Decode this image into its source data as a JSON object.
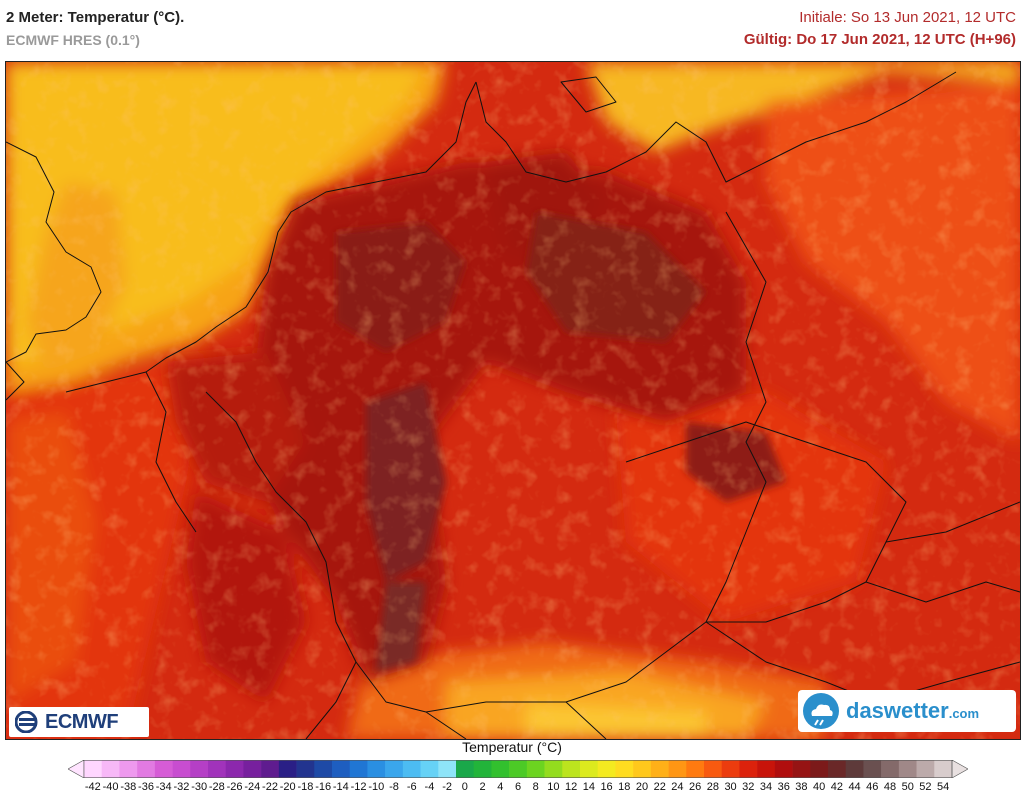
{
  "header": {
    "title": "2 Meter: Temperatur (°C).",
    "model": "ECMWF HRES (0.1°)",
    "initial": "Initiale: So 13 Jun 2021, 12 UTC",
    "valid": "Gültig: Do 17 Jun 2021, 12 UTC (H+96)"
  },
  "logos": {
    "ecmwf": "ECMWF",
    "daswetter_main": "daswetter",
    "daswetter_tld": ".com"
  },
  "legend": {
    "title": "Temperatur (°C)",
    "ticks": [
      "-42",
      "-40",
      "-38",
      "-36",
      "-34",
      "-32",
      "-30",
      "-28",
      "-26",
      "-24",
      "-22",
      "-20",
      "-18",
      "-16",
      "-14",
      "-12",
      "-10",
      "-8",
      "-6",
      "-4",
      "-2",
      "0",
      "2",
      "4",
      "6",
      "8",
      "10",
      "12",
      "14",
      "16",
      "18",
      "20",
      "22",
      "24",
      "26",
      "28",
      "30",
      "32",
      "34",
      "36",
      "38",
      "40",
      "42",
      "44",
      "46",
      "48",
      "50",
      "52",
      "54"
    ],
    "colors": [
      "#ffd6ff",
      "#f7b8f7",
      "#ee99ee",
      "#e27ae2",
      "#d65cd6",
      "#c84dd0",
      "#b53fc6",
      "#a133bb",
      "#8c28ad",
      "#77209e",
      "#5f1c8f",
      "#2a1f86",
      "#22348f",
      "#1e4aa6",
      "#1e5ec0",
      "#2076d4",
      "#2a8fe2",
      "#3aa6ec",
      "#4cbcf2",
      "#66d2f6",
      "#8ee4f8",
      "#1aa84a",
      "#22b43a",
      "#32c02e",
      "#4cca26",
      "#6cd420",
      "#94dc1e",
      "#bce41e",
      "#dcea1e",
      "#f4ea20",
      "#ffdc20",
      "#ffc81c",
      "#ffb018",
      "#ff9614",
      "#ff7a10",
      "#f85a10",
      "#ec3c0e",
      "#dc220c",
      "#c8140a",
      "#b00e0e",
      "#961414",
      "#7c1a1a",
      "#6a2828",
      "#5e3a3a",
      "#6a5050",
      "#846a6a",
      "#a08888",
      "#bcaaaa",
      "#d8cccc"
    ],
    "left_arrow_color": "#ffe4ff",
    "right_arrow_color": "#e8e0e0"
  }
}
